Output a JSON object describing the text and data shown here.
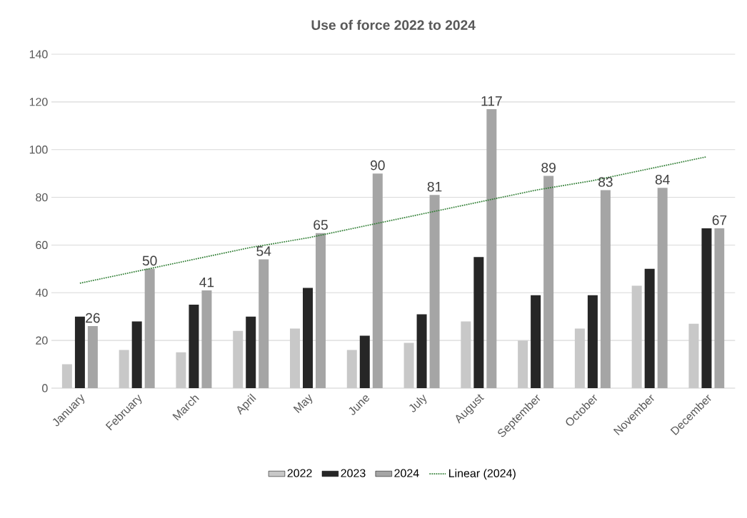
{
  "chart_data": {
    "type": "bar",
    "title": "Use of force 2022 to 2024",
    "categories": [
      "January",
      "February",
      "March",
      "April",
      "May",
      "June",
      "July",
      "August",
      "September",
      "October",
      "November",
      "December"
    ],
    "series": [
      {
        "name": "2022",
        "color": "#c8c8c8",
        "values": [
          10,
          16,
          15,
          24,
          25,
          16,
          19,
          28,
          20,
          25,
          43,
          27
        ]
      },
      {
        "name": "2023",
        "color": "#262626",
        "values": [
          30,
          28,
          35,
          30,
          42,
          22,
          31,
          55,
          39,
          39,
          50,
          67
        ]
      },
      {
        "name": "2024",
        "color": "#a5a5a5",
        "values": [
          26,
          50,
          41,
          54,
          65,
          90,
          81,
          117,
          89,
          83,
          84,
          67
        ],
        "value_labels": [
          "26",
          "50",
          "41",
          "54",
          "65",
          "90",
          "81",
          "117",
          "89",
          "83",
          "84",
          "67"
        ]
      },
      {
        "name": "Linear (2024)",
        "type": "line",
        "color": "#2e7d32",
        "line_style": "dotted",
        "values": [
          44,
          49,
          54,
          59,
          63,
          68,
          73,
          78,
          83,
          87,
          92,
          97
        ]
      }
    ],
    "ylim": [
      0,
      140
    ],
    "yticks": [
      0,
      20,
      40,
      60,
      80,
      100,
      120,
      140
    ],
    "grid": "y",
    "legend": "bottom"
  }
}
